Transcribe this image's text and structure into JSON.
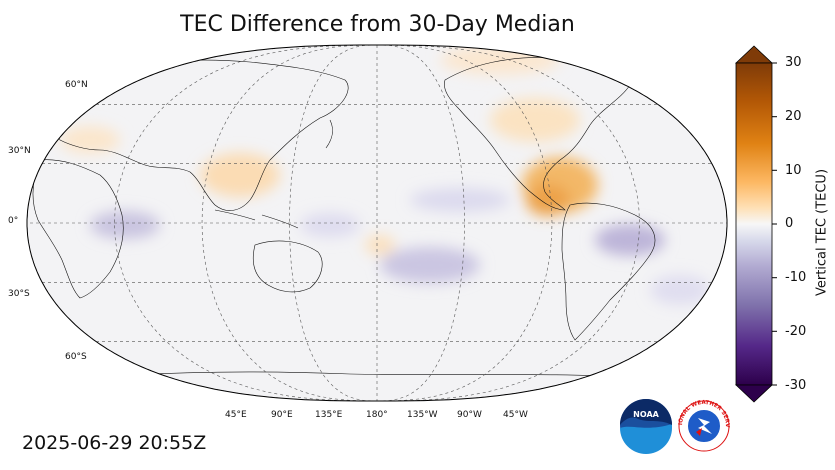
{
  "title": "TEC Difference from 30-Day Median",
  "timestamp": "2025-06-29 20:55Z",
  "map": {
    "projection": "robinson",
    "center_longitude": 180,
    "lat_labels": [
      "60°N",
      "30°N",
      "0°",
      "30°S",
      "60°S"
    ],
    "lon_labels": [
      "45°E",
      "90°E",
      "135°E",
      "180°",
      "135°W",
      "90°W",
      "45°W"
    ]
  },
  "colorbar": {
    "label": "Vertical TEC (TECU)",
    "ticks": [
      "30",
      "20",
      "10",
      "0",
      "-10",
      "-20",
      "-30"
    ],
    "min": -30,
    "max": 30,
    "colormap": "PuOr_r",
    "extend": "both"
  },
  "logos": {
    "noaa_text": "NOAA",
    "nws_text": "NATIONAL WEATHER SERVICE"
  },
  "colors": {
    "positive": "#e58a17",
    "negative": "#5a4596",
    "neutral": "#f2f2f2"
  }
}
